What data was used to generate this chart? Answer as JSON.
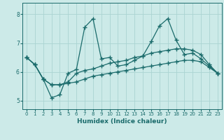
{
  "title": "",
  "xlabel": "Humidex (Indice chaleur)",
  "bg_color": "#cceae8",
  "line_color": "#1a6b6b",
  "grid_color": "#aad4d2",
  "xlim": [
    -0.5,
    23.5
  ],
  "ylim": [
    4.7,
    8.4
  ],
  "xticks": [
    0,
    1,
    2,
    3,
    4,
    5,
    6,
    7,
    8,
    9,
    10,
    11,
    12,
    13,
    14,
    15,
    16,
    17,
    18,
    19,
    20,
    21,
    22,
    23
  ],
  "yticks": [
    5,
    6,
    7,
    8
  ],
  "lines": [
    {
      "x": [
        0,
        1,
        2,
        3,
        4,
        5,
        6,
        7,
        8,
        9,
        10,
        11,
        12,
        13,
        14,
        15,
        16,
        17,
        18,
        19,
        20,
        21,
        22,
        23
      ],
      "y": [
        6.5,
        6.25,
        5.75,
        5.1,
        5.2,
        5.95,
        6.08,
        7.55,
        7.85,
        6.45,
        6.5,
        6.2,
        6.25,
        6.4,
        6.55,
        7.05,
        7.6,
        7.85,
        7.1,
        6.6,
        6.65,
        6.45,
        6.2,
        5.95
      ]
    },
    {
      "x": [
        0,
        1,
        2,
        3,
        4,
        5,
        6,
        7,
        8,
        9,
        10,
        11,
        12,
        13,
        14,
        15,
        16,
        17,
        18,
        19,
        20,
        21,
        22,
        23
      ],
      "y": [
        6.5,
        6.25,
        5.75,
        5.55,
        5.55,
        5.65,
        5.95,
        6.05,
        6.1,
        6.2,
        6.3,
        6.35,
        6.4,
        6.5,
        6.55,
        6.65,
        6.7,
        6.75,
        6.8,
        6.8,
        6.75,
        6.6,
        6.25,
        5.95
      ]
    },
    {
      "x": [
        0,
        1,
        2,
        3,
        4,
        5,
        6,
        7,
        8,
        9,
        10,
        11,
        12,
        13,
        14,
        15,
        16,
        17,
        18,
        19,
        20,
        21,
        22,
        23
      ],
      "y": [
        6.5,
        6.25,
        5.75,
        5.55,
        5.55,
        5.6,
        5.65,
        5.75,
        5.85,
        5.9,
        5.95,
        6.0,
        6.05,
        6.1,
        6.15,
        6.2,
        6.25,
        6.3,
        6.35,
        6.4,
        6.4,
        6.35,
        6.15,
        5.95
      ]
    }
  ]
}
